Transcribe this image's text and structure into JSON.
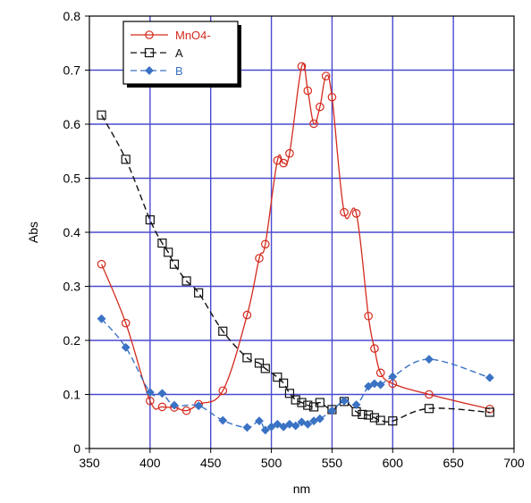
{
  "chart_data": {
    "type": "line",
    "xlabel": "nm",
    "ylabel": "Abs",
    "xlim": [
      350,
      700
    ],
    "ylim": [
      0,
      0.8
    ],
    "x_ticks": [
      350,
      400,
      450,
      500,
      550,
      600,
      650,
      700
    ],
    "y_ticks": [
      0,
      0.1,
      0.2,
      0.3,
      0.4,
      0.5,
      0.6,
      0.7,
      0.8
    ],
    "x_tick_labels": [
      "350",
      "400",
      "450",
      "500",
      "550",
      "600",
      "650",
      "700"
    ],
    "y_tick_labels": [
      "0",
      "0.1",
      "0.2",
      "0.3",
      "0.4",
      "0.5",
      "0.6",
      "0.7",
      "0.8"
    ],
    "grid": true,
    "legend_position": "top-left",
    "series": [
      {
        "name": "MnO4-",
        "color": "#d42a1e",
        "marker": "open-circle",
        "line_style": "solid",
        "x": [
          360,
          380,
          400,
          410,
          420,
          430,
          440,
          460,
          480,
          490,
          495,
          505,
          510,
          515,
          525,
          530,
          535,
          540,
          545,
          550,
          560,
          570,
          580,
          585,
          590,
          600,
          630,
          680
        ],
        "y": [
          0.341,
          0.232,
          0.088,
          0.077,
          0.076,
          0.07,
          0.082,
          0.107,
          0.247,
          0.352,
          0.378,
          0.533,
          0.528,
          0.546,
          0.707,
          0.662,
          0.601,
          0.632,
          0.689,
          0.65,
          0.437,
          0.435,
          0.245,
          0.185,
          0.14,
          0.12,
          0.1,
          0.073
        ]
      },
      {
        "name": "A",
        "color": "#111111",
        "marker": "open-square",
        "line_style": "dashed",
        "x": [
          360,
          380,
          400,
          410,
          415,
          420,
          430,
          440,
          460,
          480,
          490,
          495,
          505,
          510,
          515,
          520,
          525,
          530,
          535,
          540,
          550,
          560,
          570,
          575,
          580,
          585,
          590,
          600,
          630,
          680
        ],
        "y": [
          0.617,
          0.535,
          0.423,
          0.38,
          0.363,
          0.341,
          0.31,
          0.288,
          0.217,
          0.168,
          0.158,
          0.148,
          0.132,
          0.121,
          0.102,
          0.09,
          0.085,
          0.08,
          0.077,
          0.085,
          0.072,
          0.087,
          0.068,
          0.063,
          0.062,
          0.057,
          0.052,
          0.051,
          0.074,
          0.067
        ]
      },
      {
        "name": "B",
        "color": "#3a72c4",
        "marker": "filled-diamond",
        "line_style": "dashed",
        "x": [
          360,
          380,
          400,
          410,
          420,
          440,
          460,
          480,
          490,
          495,
          500,
          505,
          510,
          515,
          520,
          525,
          530,
          535,
          540,
          550,
          560,
          570,
          580,
          585,
          590,
          600,
          630,
          680
        ],
        "y": [
          0.24,
          0.187,
          0.104,
          0.102,
          0.08,
          0.079,
          0.052,
          0.039,
          0.051,
          0.034,
          0.04,
          0.045,
          0.04,
          0.045,
          0.042,
          0.049,
          0.045,
          0.051,
          0.055,
          0.07,
          0.088,
          0.081,
          0.115,
          0.12,
          0.118,
          0.133,
          0.165,
          0.131
        ]
      }
    ]
  }
}
